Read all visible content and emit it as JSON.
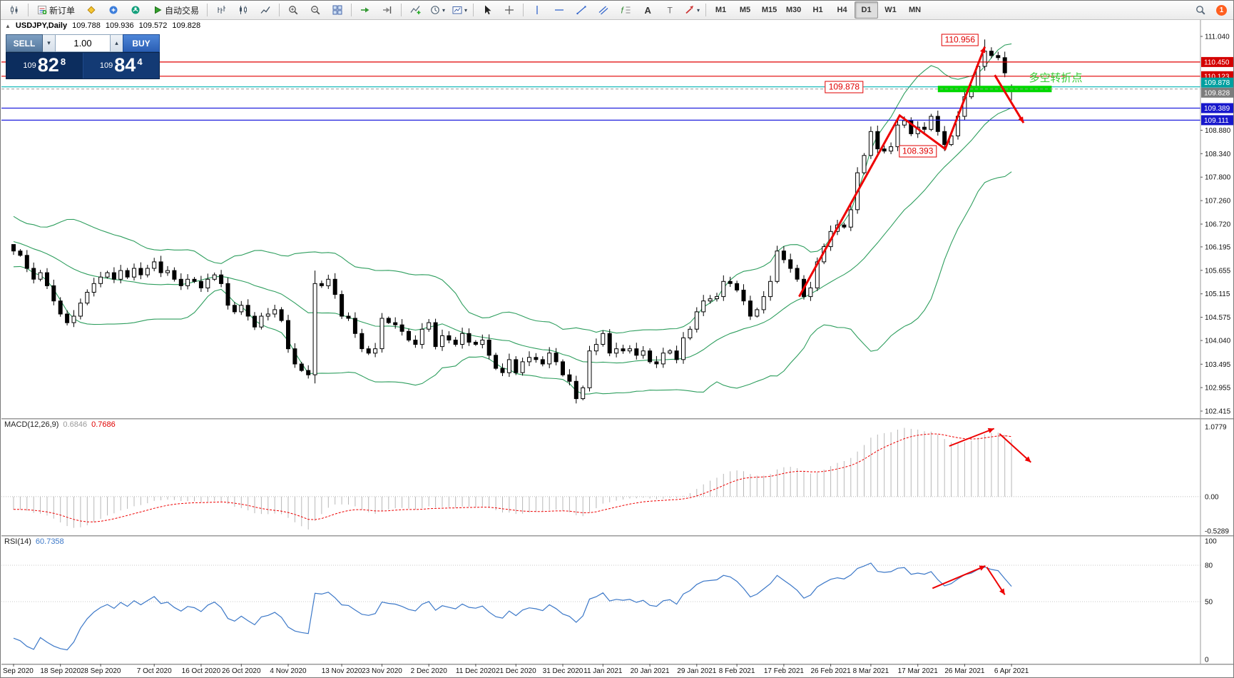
{
  "quote": {
    "collapse": "▲",
    "symbol": "USDJPY,Daily",
    "open": "109.788",
    "high": "109.936",
    "low": "109.572",
    "close": "109.828"
  },
  "oct": {
    "sell_label": "SELL",
    "buy_label": "BUY",
    "volume": "1.00",
    "spin_down": "▾",
    "spin_up": "▴",
    "sell_prefix": "109",
    "sell_big": "82",
    "sell_sup": "8",
    "buy_prefix": "109",
    "buy_big": "84",
    "buy_sup": "4"
  },
  "indicators": {
    "macd": {
      "name": "MACD(12,26,9)",
      "value1": "0.6846",
      "value2": "0.7686"
    },
    "rsi": {
      "name": "RSI(14)",
      "value": "60.7358"
    }
  },
  "toolbar": {
    "buttons": [
      {
        "name": "new-chart",
        "icon": "candlechart"
      },
      {
        "sep": true
      },
      {
        "name": "new-order",
        "icon": "neworder",
        "label": "新订单"
      },
      {
        "name": "metaeditor",
        "icon": "metaeditor"
      },
      {
        "name": "market",
        "icon": "market"
      },
      {
        "name": "community",
        "icon": "community"
      },
      {
        "name": "auto-trading",
        "icon": "autotrading",
        "label": "自动交易"
      },
      {
        "sep": true
      },
      {
        "name": "bar-chart-mode",
        "icon": "bars"
      },
      {
        "name": "candle-chart-mode",
        "icon": "candles"
      },
      {
        "name": "line-chart-mode",
        "icon": "linechart"
      },
      {
        "sep": true
      },
      {
        "name": "zoom-in",
        "icon": "zoomin"
      },
      {
        "name": "zoom-out",
        "icon": "zoomout"
      },
      {
        "name": "tile-windows",
        "icon": "tile"
      },
      {
        "sep": true
      },
      {
        "name": "auto-scroll",
        "icon": "autoscroll"
      },
      {
        "name": "chart-shift",
        "icon": "chartshift"
      },
      {
        "sep": true
      },
      {
        "name": "indicators-list",
        "icon": "indicators"
      },
      {
        "name": "periods",
        "icon": "periods",
        "caret": true
      },
      {
        "name": "templates",
        "icon": "templates",
        "caret": true
      },
      {
        "sep": true
      },
      {
        "name": "cursor",
        "icon": "cursor"
      },
      {
        "name": "crosshair",
        "icon": "crosshair"
      },
      {
        "sep": true
      },
      {
        "name": "vertical-line",
        "icon": "vline"
      },
      {
        "name": "horizontal-line",
        "icon": "hline"
      },
      {
        "name": "trendline",
        "icon": "trendline"
      },
      {
        "name": "equidistant-channel",
        "icon": "channel"
      },
      {
        "name": "fibonacci-retracement",
        "icon": "fibo"
      },
      {
        "name": "text",
        "icon": "text"
      },
      {
        "name": "text-label",
        "icon": "labelT"
      },
      {
        "name": "arrow-objects",
        "icon": "arrows",
        "caret": true
      },
      {
        "sep": true
      }
    ],
    "timeframes": [
      "M1",
      "M5",
      "M15",
      "M30",
      "H1",
      "H4",
      "D1",
      "W1",
      "MN"
    ],
    "active_timeframe": "D1",
    "notification_count": "1"
  },
  "colors": {
    "bands": "#2e9e5e",
    "macd_hist": "#b8b8b8",
    "macd_signal": "#ee0000",
    "rsi": "#3c78c8",
    "annotation": "#ee0000",
    "zone": "#00d800",
    "up_candle": "#ffffff",
    "down_candle": "#000000"
  },
  "chart_data": {
    "type": "candlestick",
    "symbol": "USDJPY",
    "timeframe": "Daily",
    "current_bar_ohlc": [
      109.788,
      109.936,
      109.572,
      109.828
    ],
    "indicators_shown": [
      "Bollinger Bands",
      "MACD(12,26,9)",
      "RSI(14)"
    ],
    "candles_close": [
      106.1,
      106.0,
      105.7,
      105.45,
      105.6,
      105.3,
      104.95,
      104.65,
      104.45,
      104.6,
      104.9,
      105.15,
      105.35,
      105.5,
      105.6,
      105.45,
      105.65,
      105.5,
      105.7,
      105.55,
      105.7,
      105.85,
      105.6,
      105.65,
      105.45,
      105.3,
      105.45,
      105.4,
      105.25,
      105.45,
      105.55,
      105.35,
      104.85,
      104.7,
      104.85,
      104.6,
      104.35,
      104.6,
      104.65,
      104.75,
      104.5,
      103.85,
      103.5,
      103.35,
      103.25,
      105.35,
      105.3,
      105.45,
      105.1,
      104.6,
      104.55,
      104.2,
      103.85,
      103.75,
      103.85,
      104.55,
      104.45,
      104.4,
      104.25,
      104.05,
      103.95,
      104.3,
      104.45,
      103.9,
      104.15,
      104.05,
      103.95,
      104.2,
      104.0,
      103.95,
      104.05,
      103.7,
      103.4,
      103.3,
      103.6,
      103.3,
      103.55,
      103.65,
      103.6,
      103.5,
      103.75,
      103.55,
      103.25,
      103.1,
      102.7,
      102.95,
      103.8,
      103.95,
      104.2,
      103.75,
      103.85,
      103.8,
      103.85,
      103.7,
      103.8,
      103.55,
      103.5,
      103.75,
      103.8,
      103.6,
      104.1,
      104.3,
      104.7,
      104.95,
      105.0,
      105.05,
      105.4,
      105.35,
      105.2,
      104.95,
      104.6,
      104.75,
      105.05,
      105.4,
      106.1,
      105.9,
      105.7,
      105.45,
      105.05,
      105.25,
      105.85,
      106.2,
      106.55,
      106.7,
      106.65,
      107.05,
      107.9,
      108.3,
      108.85,
      108.45,
      108.4,
      108.5,
      109.0,
      109.1,
      108.8,
      108.95,
      108.9,
      109.2,
      108.85,
      108.55,
      108.75,
      109.2,
      109.65,
      109.85,
      110.35,
      110.7,
      110.6,
      110.55,
      110.2,
      109.828
    ],
    "pre_closes": [
      106.9,
      106.85,
      106.75,
      106.65,
      106.55,
      106.5,
      106.45,
      106.4,
      106.3,
      106.25,
      106.2,
      106.15,
      106.1,
      106.05,
      106.0,
      105.95,
      106.0,
      106.05,
      106.15
    ],
    "special_bars": {
      "0": {
        "open": 106.25
      },
      "45": {
        "high": 105.65,
        "low": 103.05
      },
      "84": {
        "low": 102.59
      },
      "114": {
        "high": 106.22
      },
      "139": {
        "low": 108.4
      },
      "145": {
        "high": 110.97
      },
      "149": {
        "open": 109.788,
        "high": 109.936,
        "low": 109.572,
        "close": 109.828
      }
    },
    "y_ticks": [
      [
        "111.040",
        111.04
      ],
      [
        "108.880",
        108.88
      ],
      [
        "108.340",
        108.34
      ],
      [
        "107.800",
        107.8
      ],
      [
        "107.260",
        107.26
      ],
      [
        "106.720",
        106.72
      ],
      [
        "106.195",
        106.195
      ],
      [
        "105.655",
        105.655
      ],
      [
        "105.115",
        105.115
      ],
      [
        "104.575",
        104.575
      ],
      [
        "104.040",
        104.04
      ],
      [
        "103.495",
        103.495
      ],
      [
        "102.955",
        102.955
      ],
      [
        "102.415",
        102.415
      ]
    ],
    "hlines": [
      {
        "price": 110.45,
        "color": "#e00000",
        "label": "110.450",
        "label_bg": "#d40000",
        "label_nudge": 0
      },
      {
        "price": 110.123,
        "color": "#e00000",
        "label": "110.123",
        "label_bg": "#d40000",
        "label_nudge": 0
      },
      {
        "price": 109.878,
        "color": "#00b2b2",
        "label": "109.878",
        "label_bg": "#00a0a0",
        "label_nudge": -6
      },
      {
        "price": 109.389,
        "color": "#2020dd",
        "label": "109.389",
        "label_bg": "#1818cc",
        "label_nudge": 0
      },
      {
        "price": 109.111,
        "color": "#2020dd",
        "label": "109.111",
        "label_bg": "#1818cc",
        "label_nudge": 0
      }
    ],
    "current_price": {
      "price": 109.828,
      "label": "109.828",
      "label_bg": "#7d7d7d",
      "label_nudge": 5
    },
    "macd_axis": [
      [
        "1.0779",
        1.0779
      ],
      [
        "0.00",
        0
      ],
      [
        "-0.5289",
        -0.5289
      ]
    ],
    "rsi_axis": [
      [
        "100",
        100
      ],
      [
        "80",
        80
      ],
      [
        "50",
        50
      ],
      [
        "0",
        0
      ]
    ],
    "rsi_levels": [
      80,
      50
    ],
    "x_labels": [
      [
        "Sep 2020",
        0
      ],
      [
        "18 Sep 2020",
        7
      ],
      [
        "28 Sep 2020",
        13
      ],
      [
        "7 Oct 2020",
        21
      ],
      [
        "16 Oct 2020",
        28
      ],
      [
        "26 Oct 2020",
        34
      ],
      [
        "4 Nov 2020",
        41
      ],
      [
        "13 Nov 2020",
        49
      ],
      [
        "23 Nov 2020",
        55
      ],
      [
        "2 Dec 2020",
        62
      ],
      [
        "11 Dec 2020",
        69
      ],
      [
        "21 Dec 2020",
        75
      ],
      [
        "31 Dec 2020",
        82
      ],
      [
        "11 Jan 2021",
        88
      ],
      [
        "20 Jan 2021",
        95
      ],
      [
        "29 Jan 2021",
        102
      ],
      [
        "8 Feb 2021",
        108
      ],
      [
        "17 Feb 2021",
        115
      ],
      [
        "26 Feb 2021",
        122
      ],
      [
        "8 Mar 2021",
        128
      ],
      [
        "17 Mar 2021",
        135
      ],
      [
        "26 Mar 2021",
        142
      ],
      [
        "6 Apr 2021",
        149
      ]
    ],
    "annotations": {
      "main_arrows": [
        [
          [
            117.3,
            105.05
          ],
          [
            132.3,
            109.22
          ],
          [
            139.1,
            108.45
          ],
          [
            145.0,
            110.8
          ]
        ],
        [
          [
            146.5,
            110.15
          ],
          [
            150.8,
            109.05
          ]
        ]
      ],
      "macd_arrows": [
        [
          [
            139.7,
            0.78
          ],
          [
            146.4,
            1.05
          ]
        ],
        [
          [
            147.2,
            0.97
          ],
          [
            151.9,
            0.53
          ]
        ]
      ],
      "rsi_arrows": [
        [
          [
            137.2,
            61
          ],
          [
            145.1,
            79.5
          ]
        ],
        [
          [
            145.3,
            78.4
          ],
          [
            148.0,
            55.7
          ]
        ]
      ],
      "callouts": [
        {
          "text": "110.956",
          "bar": 141.3,
          "price": 110.956
        },
        {
          "text": "109.878",
          "bar": 124.0,
          "price": 109.878
        },
        {
          "text": "108.393",
          "bar": 135.0,
          "price": 108.393
        }
      ],
      "note": {
        "text": "多空转折点",
        "bar": 151.6,
        "price": 110.1,
        "color": "#33cc33"
      },
      "support_zone": {
        "from_bar": 138,
        "to_bar": 155,
        "price": 109.83,
        "thickness": 9,
        "color": "#00d800"
      }
    }
  }
}
